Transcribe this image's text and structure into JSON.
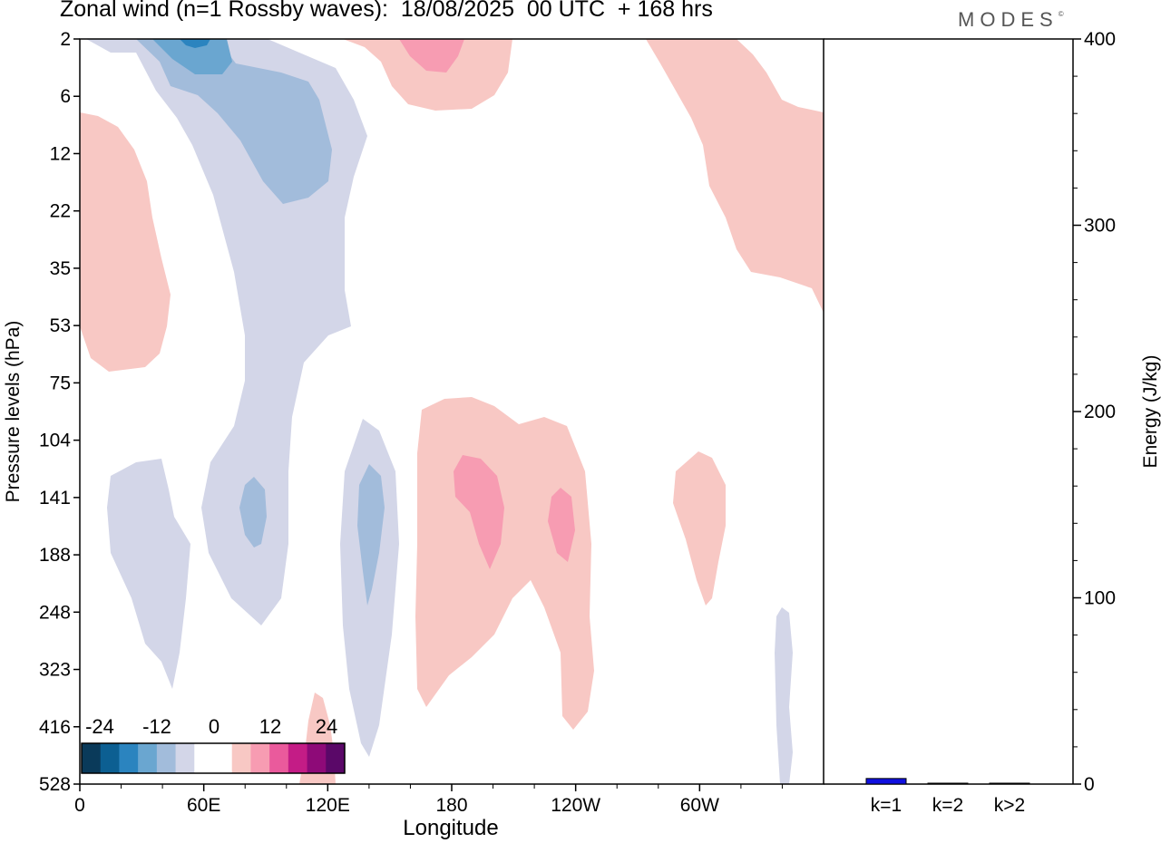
{
  "title": "Zonal wind (n=1 Rossby waves):  18/08/2025  00 UTC  + 168 hrs",
  "logo": "MODES",
  "logo_mark": "©",
  "chart_data": [
    {
      "type": "heatmap",
      "title": "Zonal wind (n=1 Rossby waves)",
      "xlabel": "Longitude",
      "ylabel": "Pressure levels (hPa)",
      "x_ticks": [
        "0",
        "60E",
        "120E",
        "180",
        "120W",
        "60W"
      ],
      "x_range_deg": [
        0,
        360
      ],
      "y_ticks": [
        "2",
        "6",
        "12",
        "22",
        "35",
        "53",
        "75",
        "104",
        "141",
        "188",
        "248",
        "323",
        "416",
        "528"
      ],
      "colorbar": {
        "labels": [
          "-24",
          "-12",
          "0",
          "12",
          "24"
        ],
        "colors": [
          "#0a3a5a",
          "#0c5f92",
          "#2b84bf",
          "#6aa6d0",
          "#a2bcdb",
          "#d3d6e8",
          "#ffffff",
          "#ffffff",
          "#f8c8c4",
          "#f79cb2",
          "#ea5a9c",
          "#c41c86",
          "#8e0a78",
          "#5a0868"
        ]
      },
      "features": [
        {
          "sign": "negative",
          "level": "weak",
          "region": "upper 0-130E, stratosphere",
          "lon": [
            10,
            140
          ],
          "lev": [
            "2",
            "75"
          ]
        },
        {
          "sign": "negative",
          "level": "moderate",
          "region": "30-120E, 2-22 hPa",
          "lon": [
            30,
            120
          ],
          "lev": [
            "2",
            "22"
          ]
        },
        {
          "sign": "negative",
          "level": "strong",
          "region": "50E, 2 hPa",
          "lon": [
            45,
            65
          ],
          "lev": [
            "2",
            "3"
          ]
        },
        {
          "sign": "positive",
          "level": "weak",
          "region": "0-40E, 6-75 hPa",
          "lon": [
            0,
            45
          ],
          "lev": [
            "6",
            "75"
          ]
        },
        {
          "sign": "positive",
          "level": "weak",
          "region": "130-210E, 2-6 hPa",
          "lon": [
            130,
            210
          ],
          "lev": [
            "2",
            "6"
          ]
        },
        {
          "sign": "positive",
          "level": "moderate",
          "region": "165-180E, 2 hPa",
          "lon": [
            160,
            185
          ],
          "lev": [
            "2",
            "3"
          ]
        },
        {
          "sign": "positive",
          "level": "weak",
          "region": "80W-0, 2-53 hPa",
          "lon": [
            275,
            360
          ],
          "lev": [
            "2",
            "53"
          ]
        },
        {
          "sign": "negative",
          "level": "weak",
          "region": "10-60E, 120-330 hPa",
          "lon": [
            10,
            60
          ],
          "lev": [
            "120",
            "330"
          ]
        },
        {
          "sign": "negative",
          "level": "weak",
          "region": "60-110E, 53-250 hPa",
          "lon": [
            60,
            110
          ],
          "lev": [
            "53",
            "248"
          ]
        },
        {
          "sign": "negative",
          "level": "moderate",
          "region": "85E, 141 hPa",
          "lon": [
            78,
            90
          ],
          "lev": [
            "120",
            "180"
          ]
        },
        {
          "sign": "negative",
          "level": "weak",
          "region": "125-155E, 104-470 hPa",
          "lon": [
            125,
            155
          ],
          "lev": [
            "104",
            "470"
          ]
        },
        {
          "sign": "negative",
          "level": "moderate",
          "region": "140E, 141 hPa",
          "lon": [
            135,
            148
          ],
          "lev": [
            "120",
            "250"
          ]
        },
        {
          "sign": "positive",
          "level": "weak",
          "region": "165E-100W, 90-400 hPa",
          "lon": [
            165,
            265
          ],
          "lev": [
            "90",
            "400"
          ]
        },
        {
          "sign": "positive",
          "level": "moderate",
          "region": "185-205E, 141 hPa",
          "lon": [
            180,
            205
          ],
          "lev": [
            "120",
            "200"
          ]
        },
        {
          "sign": "positive",
          "level": "moderate",
          "region": "115W, 141 hPa",
          "lon": [
            240,
            250
          ],
          "lev": [
            "130",
            "200"
          ]
        },
        {
          "sign": "positive",
          "level": "weak",
          "region": "60W, 120-230 hPa",
          "lon": [
            285,
            315
          ],
          "lev": [
            "115",
            "230"
          ]
        },
        {
          "sign": "negative",
          "level": "weak",
          "region": "15W, 248-528 hPa",
          "lon": [
            338,
            346
          ],
          "lev": [
            "248",
            "528"
          ]
        },
        {
          "sign": "positive",
          "level": "weak",
          "region": "110E, 416-528 hPa",
          "lon": [
            105,
            120
          ],
          "lev": [
            "380",
            "528"
          ]
        }
      ]
    },
    {
      "type": "bar",
      "title": "Energy",
      "ylabel": "Energy (J/kg)",
      "categories": [
        "k=1",
        "k=2",
        "k>2"
      ],
      "values": [
        3,
        0.2,
        0.4
      ],
      "ylim": [
        0,
        400
      ],
      "y_ticks": [
        "0",
        "100",
        "200",
        "300",
        "400"
      ],
      "bar_colors": [
        "#1010e0",
        "#1010e0",
        "#1010e0"
      ]
    }
  ]
}
